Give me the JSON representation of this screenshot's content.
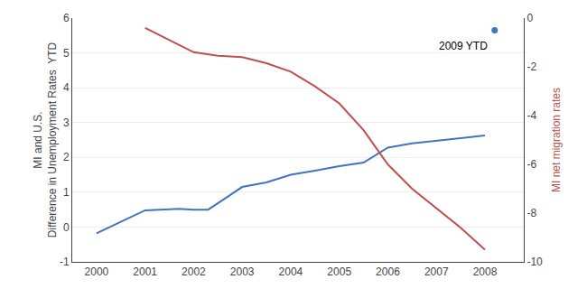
{
  "chart_data": {
    "type": "line",
    "y_label": "MI and U.S.\nDifference in Unemployment Rates  YTD",
    "y2_label": "MI net migration rates",
    "series": [
      {
        "type": "line",
        "color": "#4472C4",
        "x": [
          2000,
          2001,
          2001.7,
          2002,
          2002.3,
          2003,
          2003.5,
          2004,
          2004.5,
          2005,
          2005.5,
          2006,
          2006.5,
          2007,
          2007.5,
          2008
        ],
        "values": [
          -0.18,
          0.48,
          0.52,
          0.5,
          0.5,
          1.15,
          1.28,
          1.5,
          1.62,
          1.75,
          1.85,
          2.28,
          2.4,
          2.48,
          2.55,
          2.63
        ]
      },
      {
        "type": "line",
        "color": "#C0504D",
        "axis": "y2",
        "x": [
          2001,
          2002,
          2002.5,
          2003,
          2003.5,
          2004,
          2004.5,
          2005,
          2005.5,
          2006,
          2006.5,
          2007,
          2007.5,
          2008
        ],
        "values": [
          -0.4,
          -1.4,
          -1.55,
          -1.6,
          -1.85,
          -2.2,
          -2.8,
          -3.5,
          -4.6,
          -6.0,
          -7.0,
          -7.8,
          -8.6,
          -9.5
        ]
      },
      {
        "type": "scatter",
        "marker": "circle",
        "color": "#4472C4",
        "x": [
          2008.2
        ],
        "values": [
          5.65
        ]
      }
    ],
    "annotations": [
      {
        "text": "2009 YTD",
        "x": 2008.2,
        "y": 5.65
      }
    ],
    "xlim": [
      1999.5,
      2008.8
    ],
    "xticks": [
      2000,
      2001,
      2002,
      2003,
      2004,
      2005,
      2006,
      2007,
      2008
    ],
    "ylim": [
      -1.0,
      6.0
    ],
    "yticks": [
      -1,
      0,
      1,
      2,
      3,
      4,
      5,
      6
    ],
    "y2lim": [
      -10,
      0
    ],
    "y2ticks": [
      0,
      -2,
      -4,
      -6,
      -8,
      -10
    ],
    "grid": "y"
  }
}
